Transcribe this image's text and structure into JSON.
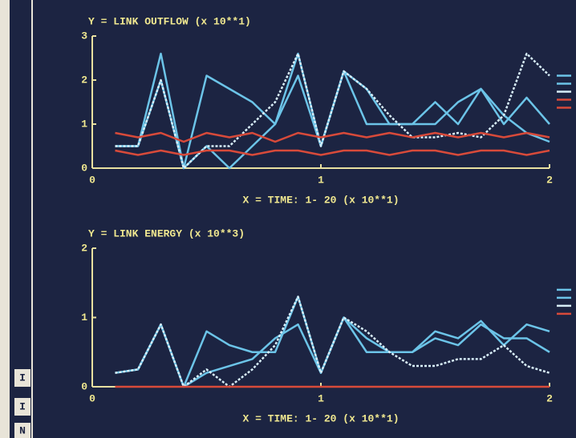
{
  "chart_data": [
    {
      "type": "line",
      "title": "Y = LINK OUTFLOW (x 10**1)",
      "x_label": "X = TIME:  1- 20 (x 10**1)",
      "x": [
        0.1,
        0.2,
        0.3,
        0.4,
        0.5,
        0.6,
        0.7,
        0.8,
        0.9,
        1.0,
        1.1,
        1.2,
        1.3,
        1.4,
        1.5,
        1.6,
        1.7,
        1.8,
        1.9,
        2.0
      ],
      "xlim": [
        0,
        2
      ],
      "xticks": [
        0,
        1,
        2
      ],
      "ylim": [
        0,
        3
      ],
      "yticks": [
        0,
        1,
        2,
        3
      ],
      "series": [
        {
          "color": "#6cc4e8",
          "values": [
            0.5,
            0.5,
            2.6,
            0,
            0.5,
            0,
            0.5,
            1,
            2.6,
            0.5,
            2.2,
            1.8,
            1,
            1,
            1,
            1.5,
            1.8,
            1.2,
            0.8,
            0.6
          ]
        },
        {
          "color": "#6cc4e8",
          "values": [
            0.5,
            0.5,
            2.0,
            0,
            2.1,
            1.8,
            1.5,
            1.0,
            2.1,
            0.5,
            2.2,
            1.0,
            1.0,
            1.0,
            1.5,
            1.0,
            1.8,
            1.0,
            1.6,
            1.0
          ]
        },
        {
          "color": "#d8eef8",
          "dashed": true,
          "values": [
            0.5,
            0.5,
            2.0,
            0,
            0.5,
            0.5,
            1,
            1.5,
            2.6,
            0.5,
            2.2,
            1.8,
            1.2,
            0.7,
            0.7,
            0.8,
            0.7,
            1.2,
            2.6,
            2.1
          ]
        },
        {
          "color": "#d84a3a",
          "values": [
            0.8,
            0.7,
            0.8,
            0.6,
            0.8,
            0.7,
            0.8,
            0.6,
            0.8,
            0.7,
            0.8,
            0.7,
            0.8,
            0.7,
            0.8,
            0.7,
            0.8,
            0.7,
            0.8,
            0.7
          ]
        },
        {
          "color": "#d84a3a",
          "values": [
            0.4,
            0.3,
            0.4,
            0.3,
            0.4,
            0.4,
            0.3,
            0.4,
            0.4,
            0.3,
            0.4,
            0.4,
            0.3,
            0.4,
            0.4,
            0.3,
            0.4,
            0.4,
            0.3,
            0.4
          ]
        }
      ]
    },
    {
      "type": "line",
      "title": "Y = LINK ENERGY (x 10**3)",
      "x_label": "X = TIME:  1- 20 (x 10**1)",
      "x": [
        0.1,
        0.2,
        0.3,
        0.4,
        0.5,
        0.6,
        0.7,
        0.8,
        0.9,
        1.0,
        1.1,
        1.2,
        1.3,
        1.4,
        1.5,
        1.6,
        1.7,
        1.8,
        1.9,
        2.0
      ],
      "xlim": [
        0,
        2
      ],
      "xticks": [
        0,
        1,
        2
      ],
      "ylim": [
        0,
        2
      ],
      "yticks": [
        0,
        1,
        2
      ],
      "series": [
        {
          "color": "#6cc4e8",
          "values": [
            0.2,
            0.25,
            0.9,
            0,
            0.8,
            0.6,
            0.5,
            0.5,
            1.3,
            0.2,
            1.0,
            0.7,
            0.5,
            0.5,
            0.8,
            0.7,
            0.95,
            0.6,
            0.9,
            0.8
          ]
        },
        {
          "color": "#6cc4e8",
          "values": [
            0.2,
            0.25,
            0.9,
            0,
            0.2,
            0.3,
            0.4,
            0.7,
            0.9,
            0.2,
            1.0,
            0.5,
            0.5,
            0.5,
            0.7,
            0.6,
            0.9,
            0.7,
            0.7,
            0.5
          ]
        },
        {
          "color": "#d8eef8",
          "dashed": true,
          "values": [
            0.2,
            0.25,
            0.9,
            0,
            0.25,
            0,
            0.25,
            0.6,
            1.3,
            0.2,
            1.0,
            0.8,
            0.5,
            0.3,
            0.3,
            0.4,
            0.4,
            0.6,
            0.3,
            0.2
          ]
        },
        {
          "color": "#d84a3a",
          "values": [
            0,
            0,
            0,
            0,
            0,
            0,
            0,
            0,
            0,
            0,
            0,
            0,
            0,
            0,
            0,
            0,
            0,
            0,
            0,
            0
          ]
        }
      ]
    }
  ],
  "side_buttons": [
    "I",
    "I",
    "N"
  ]
}
